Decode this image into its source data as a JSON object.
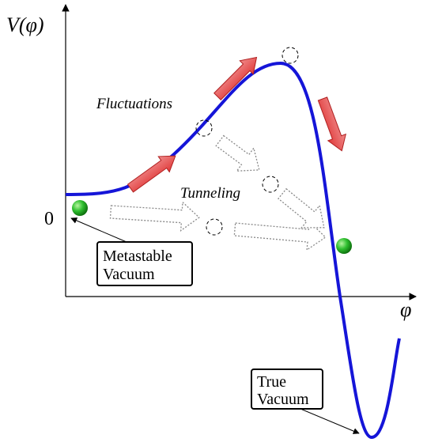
{
  "labels": {
    "y_axis": "V(φ)",
    "x_axis": "φ",
    "zero": "0",
    "fluctuations": "Fluctuations",
    "tunneling": "Tunneling"
  },
  "boxes": {
    "metastable": [
      "Metastable",
      "Vacuum"
    ],
    "true_vacuum": [
      "True",
      "Vacuum"
    ]
  }
}
